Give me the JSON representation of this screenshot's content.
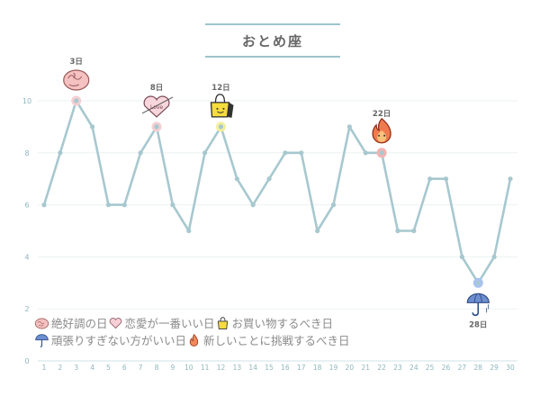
{
  "chart_data": {
    "type": "line",
    "title": "おとめ座",
    "x": [
      1,
      2,
      3,
      4,
      5,
      6,
      7,
      8,
      9,
      10,
      11,
      12,
      13,
      14,
      15,
      16,
      17,
      18,
      19,
      20,
      21,
      22,
      23,
      24,
      25,
      26,
      27,
      28,
      29,
      30
    ],
    "series": [
      {
        "values": [
          6,
          8,
          10,
          9,
          6,
          6,
          8,
          9,
          6,
          5,
          8,
          9,
          7,
          6,
          7,
          8,
          8,
          5,
          6,
          9,
          8,
          8,
          5,
          5,
          7,
          7,
          4,
          3,
          4,
          7
        ]
      }
    ],
    "ylim": [
      0,
      11
    ],
    "yticks": [
      0,
      2,
      4,
      6,
      8,
      10
    ],
    "grid": true,
    "colors": {
      "line": "#a7c8cf",
      "point": "#a7c8cf",
      "grid": "#eef2f3",
      "axis": "#cfe0e4",
      "tick_text": "#8fb6be"
    },
    "highlights": [
      {
        "x": 3,
        "label": "3日",
        "icon": "brain-icon",
        "type": "best"
      },
      {
        "x": 8,
        "label": "8日",
        "icon": "love-heart-icon",
        "type": "love"
      },
      {
        "x": 12,
        "label": "12日",
        "icon": "shopping-bag-icon",
        "type": "shopping"
      },
      {
        "x": 22,
        "label": "22日",
        "icon": "fire-icon",
        "type": "challenge"
      },
      {
        "x": 28,
        "label": "28日",
        "icon": "umbrella-icon",
        "type": "rest"
      }
    ]
  },
  "legend": {
    "best": "絶好調の日",
    "love": "恋愛が一番いい日",
    "shopping": "お買い物するべき日",
    "rest": "頑張りすぎない方がいい日",
    "challenge": "新しいことに挑戦するべき日"
  }
}
